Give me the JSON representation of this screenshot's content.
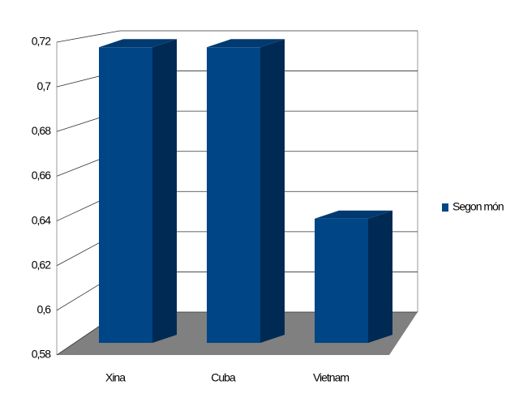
{
  "chart_data": {
    "type": "bar",
    "categories": [
      "Xina",
      "Cuba",
      "Vietnam"
    ],
    "series": [
      {
        "name": "Segon món",
        "color": "#004586",
        "values": [
          0.718,
          0.718,
          0.638
        ]
      }
    ],
    "ylim": [
      0.58,
      0.72
    ],
    "yticks": [
      {
        "value": 0.58,
        "label": "0,58"
      },
      {
        "value": 0.6,
        "label": "0,6"
      },
      {
        "value": 0.62,
        "label": "0,62"
      },
      {
        "value": 0.64,
        "label": "0,64"
      },
      {
        "value": 0.66,
        "label": "0,66"
      },
      {
        "value": 0.68,
        "label": "0,68"
      },
      {
        "value": 0.7,
        "label": "0,7"
      },
      {
        "value": 0.72,
        "label": "0,72"
      }
    ],
    "grid": true,
    "legend": "right"
  }
}
